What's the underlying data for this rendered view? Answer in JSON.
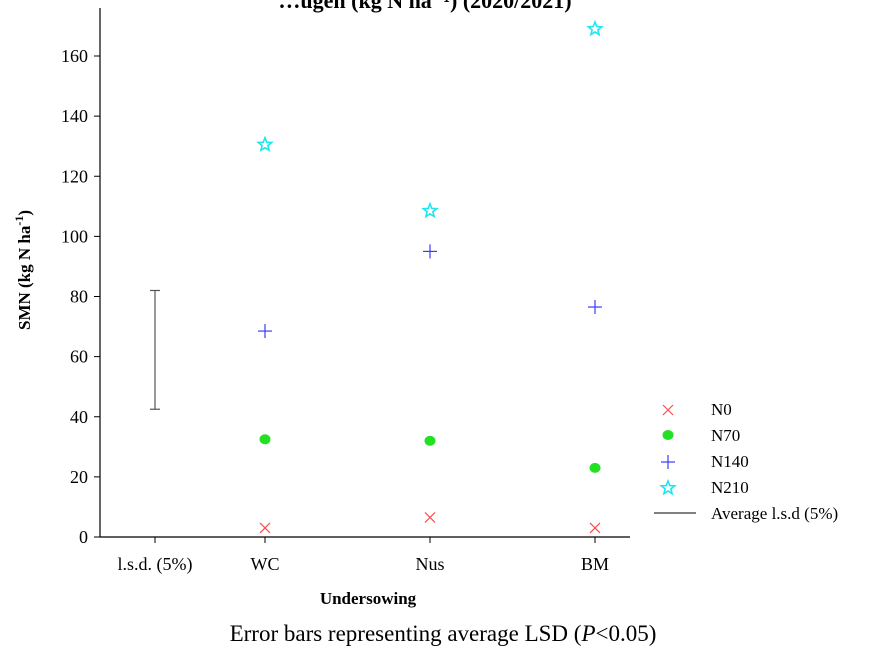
{
  "chart_data": {
    "type": "scatter",
    "title": "…ugen (kg N ha⁻¹) (2020/2021)",
    "caption": {
      "before": "Error bars representing average LSD (",
      "italic": "P",
      "after": "<0.05)"
    },
    "xlabel": "Undersowing",
    "ylabel": "SMN (kg N ha",
    "ylabel_sup": "-1",
    "ylabel_end": ")",
    "categories": [
      "l.s.d. (5%)",
      "WC",
      "Nus",
      "BM"
    ],
    "ylim": [
      0,
      175
    ],
    "yticks": [
      0,
      20,
      40,
      60,
      80,
      100,
      120,
      140,
      160
    ],
    "grid": false,
    "legend_position": "right",
    "series": [
      {
        "name": "N0",
        "marker": "x",
        "color": "#ff4d4d",
        "values": [
          null,
          3,
          6.5,
          3
        ]
      },
      {
        "name": "N70",
        "marker": "circle",
        "color": "#22e022",
        "values": [
          null,
          32.5,
          32,
          23
        ]
      },
      {
        "name": "N140",
        "marker": "plus",
        "color": "#3b3bff",
        "values": [
          null,
          68.5,
          95,
          76.5
        ]
      },
      {
        "name": "N210",
        "marker": "star",
        "color": "#1ee6f0",
        "values": [
          null,
          130.5,
          108.5,
          169
        ]
      }
    ],
    "lsd_bar": {
      "category": "l.s.d. (5%)",
      "low": 42.5,
      "high": 82,
      "color": "#555555",
      "legend": "Average l.s.d (5%)"
    }
  }
}
